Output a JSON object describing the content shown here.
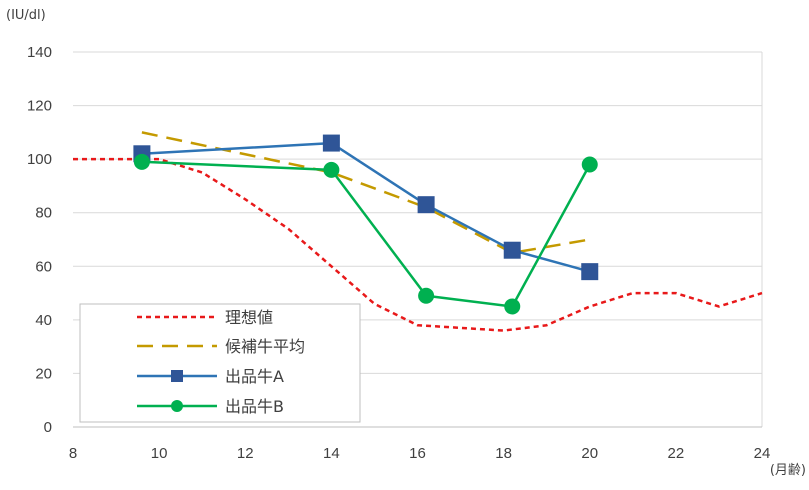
{
  "chart_data": {
    "type": "line",
    "title": "",
    "ylabel": "(IU/dl)",
    "xlabel": "(月齢)",
    "xlim": [
      8,
      24
    ],
    "ylim": [
      0,
      140
    ],
    "x_ticks": [
      "8",
      "10",
      "12",
      "14",
      "16",
      "18",
      "20",
      "22",
      "24"
    ],
    "y_ticks": [
      "0",
      "20",
      "40",
      "60",
      "80",
      "100",
      "120",
      "140"
    ],
    "grid": "horizontal",
    "legend_position": "bottom-left",
    "series": [
      {
        "name": "理想値",
        "style": "dotted",
        "color": "#e8191a",
        "marker": "none",
        "points": [
          [
            8,
            100
          ],
          [
            10,
            100
          ],
          [
            11,
            95
          ],
          [
            12,
            85
          ],
          [
            13,
            74
          ],
          [
            14,
            60
          ],
          [
            15,
            46
          ],
          [
            16,
            38
          ],
          [
            17,
            37
          ],
          [
            18,
            36
          ],
          [
            19,
            38
          ],
          [
            20,
            45
          ],
          [
            21,
            50
          ],
          [
            22,
            50
          ],
          [
            23,
            45
          ],
          [
            24,
            50
          ]
        ]
      },
      {
        "name": "候補牛平均",
        "style": "dashed",
        "color": "#c49a00",
        "marker": "none",
        "points": [
          [
            9.6,
            110
          ],
          [
            14,
            95
          ],
          [
            16.2,
            82
          ],
          [
            18.2,
            65
          ],
          [
            20,
            70
          ]
        ]
      },
      {
        "name": "出品牛A",
        "style": "solid",
        "color": "#2e74b5",
        "marker": "square",
        "marker_color": "#2f5597",
        "points": [
          [
            9.6,
            102
          ],
          [
            14,
            106
          ],
          [
            16.2,
            83
          ],
          [
            18.2,
            66
          ],
          [
            20,
            58
          ]
        ]
      },
      {
        "name": "出品牛B",
        "style": "solid",
        "color": "#00b050",
        "marker": "circle",
        "marker_color": "#00b050",
        "points": [
          [
            9.6,
            99
          ],
          [
            14,
            96
          ],
          [
            16.2,
            49
          ],
          [
            18.2,
            45
          ],
          [
            20,
            98
          ]
        ]
      }
    ]
  }
}
